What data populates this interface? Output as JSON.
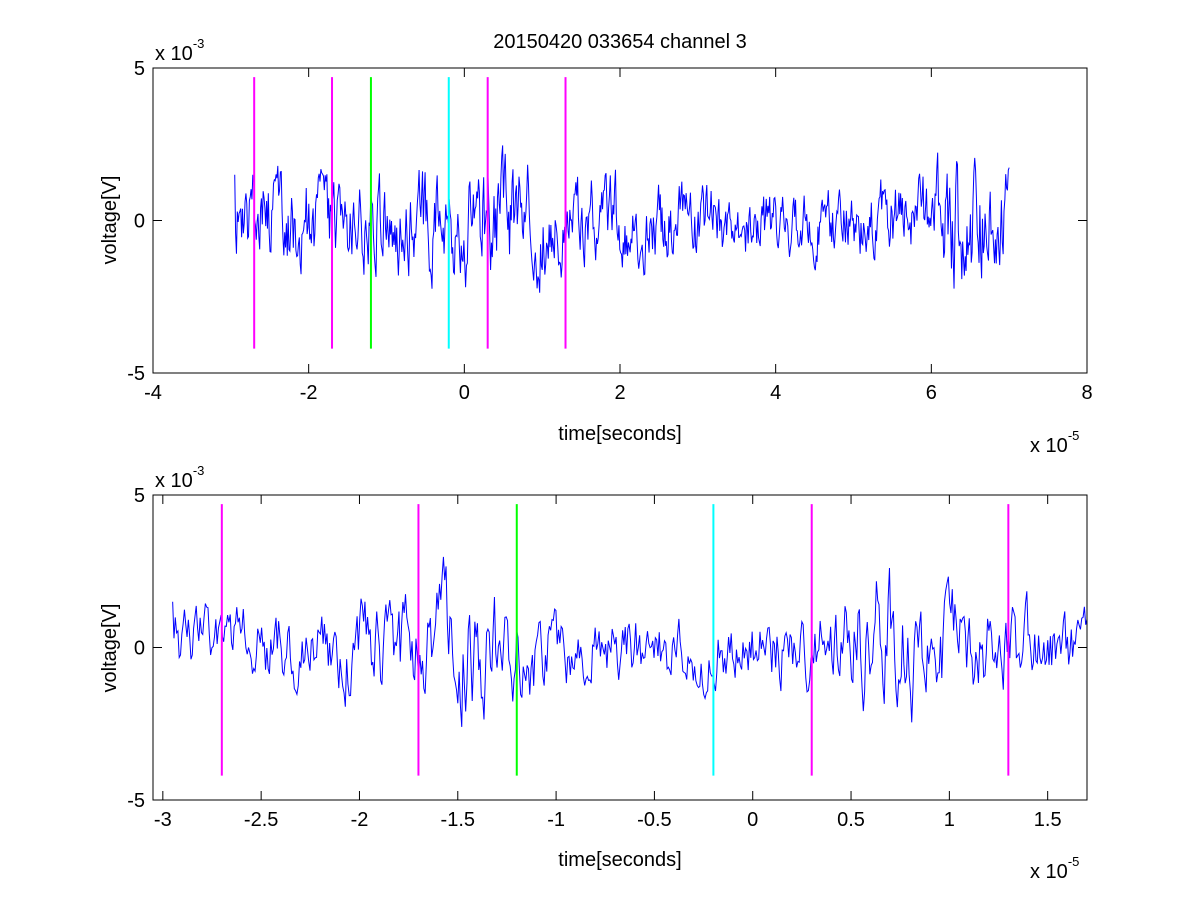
{
  "figure": {
    "title": "20150420 033654 channel 3"
  },
  "colors": {
    "trace": "#0000ff",
    "magenta": "#ff00ff",
    "green": "#00ff00",
    "cyan": "#00ffff",
    "axes": "#000000",
    "background": "#ffffff"
  },
  "chart_data": [
    {
      "type": "line",
      "title": "20150420 033654 channel 3",
      "xlabel": "time[seconds]",
      "ylabel": "voltage[V]",
      "x_scale_label": {
        "base": "x 10",
        "exponent": "-5"
      },
      "y_scale_label": {
        "base": "x 10",
        "exponent": "-3"
      },
      "xlim": [
        -4e-05,
        8e-05
      ],
      "ylim": [
        -0.005,
        0.005
      ],
      "xticks": [
        -4e-05,
        -2e-05,
        0,
        2e-05,
        4e-05,
        6e-05,
        8e-05
      ],
      "xtick_labels": [
        "-4",
        "-2",
        "0",
        "2",
        "4",
        "6",
        "8"
      ],
      "yticks": [
        -0.005,
        0,
        0.005
      ],
      "ytick_labels": [
        "-5",
        "0",
        "5"
      ],
      "grid": false,
      "trace": {
        "x_start": -2.95e-05,
        "x_end": 7e-05,
        "samples": 900,
        "amplitude_envelope": [
          [
            -2.95e-05,
            0.0011
          ],
          [
            -2e-05,
            0.0013
          ],
          [
            -1e-05,
            0.0012
          ],
          [
            5e-06,
            0.0016
          ],
          [
            1.3e-05,
            0.0011
          ],
          [
            3e-05,
            0.001
          ],
          [
            4.5e-05,
            0.0008
          ],
          [
            6e-05,
            0.0011
          ],
          [
            6.3e-05,
            0.0019
          ],
          [
            7e-05,
            0.0012
          ]
        ],
        "y_min": -0.0038,
        "y_max": 0.0042
      },
      "markers": [
        {
          "x": -2.7e-05,
          "color": "magenta",
          "y_range": [
            -0.0042,
            0.0047
          ]
        },
        {
          "x": -1.7e-05,
          "color": "magenta",
          "y_range": [
            -0.0042,
            0.0047
          ]
        },
        {
          "x": -1.2e-05,
          "color": "green",
          "y_range": [
            -0.0042,
            0.0047
          ]
        },
        {
          "x": -2e-06,
          "color": "cyan",
          "y_range": [
            -0.0042,
            0.0047
          ]
        },
        {
          "x": 3e-06,
          "color": "magenta",
          "y_range": [
            -0.0042,
            0.0047
          ]
        },
        {
          "x": 1.3e-05,
          "color": "magenta",
          "y_range": [
            -0.0042,
            0.0047
          ]
        }
      ]
    },
    {
      "type": "line",
      "title": "",
      "xlabel": "time[seconds]",
      "ylabel": "voltage[V]",
      "x_scale_label": {
        "base": "x 10",
        "exponent": "-5"
      },
      "y_scale_label": {
        "base": "x 10",
        "exponent": "-3"
      },
      "xlim": [
        -3.05e-05,
        1.7e-05
      ],
      "ylim": [
        -0.005,
        0.005
      ],
      "xticks": [
        -3e-05,
        -2.5e-05,
        -2e-05,
        -1.5e-05,
        -1e-05,
        -5e-06,
        0,
        5e-06,
        1e-05,
        1.5e-05
      ],
      "xtick_labels": [
        "-3",
        "-2.5",
        "-2",
        "-1.5",
        "-1",
        "-0.5",
        "0",
        "0.5",
        "1",
        "1.5"
      ],
      "yticks": [
        -0.005,
        0,
        0.005
      ],
      "ytick_labels": [
        "-5",
        "0",
        "5"
      ],
      "grid": false,
      "trace": {
        "x_start": -2.95e-05,
        "x_end": 1.7e-05,
        "samples": 700,
        "amplitude_envelope": [
          [
            -2.95e-05,
            0.0009
          ],
          [
            -2.2e-05,
            0.001
          ],
          [
            -1.45e-05,
            0.0017
          ],
          [
            -1e-05,
            0.001
          ],
          [
            -3e-06,
            0.0009
          ],
          [
            4e-06,
            0.0011
          ],
          [
            7e-06,
            0.0022
          ],
          [
            9e-06,
            0.0014
          ],
          [
            1.3e-05,
            0.0012
          ],
          [
            1.7e-05,
            0.0009
          ]
        ],
        "y_min": -0.0038,
        "y_max": 0.0038
      },
      "markers": [
        {
          "x": -2.7e-05,
          "color": "magenta",
          "y_range": [
            -0.0042,
            0.0047
          ]
        },
        {
          "x": -1.7e-05,
          "color": "magenta",
          "y_range": [
            -0.0042,
            0.0047
          ]
        },
        {
          "x": -1.2e-05,
          "color": "green",
          "y_range": [
            -0.0042,
            0.0047
          ]
        },
        {
          "x": -2e-06,
          "color": "cyan",
          "y_range": [
            -0.0042,
            0.0047
          ]
        },
        {
          "x": 3e-06,
          "color": "magenta",
          "y_range": [
            -0.0042,
            0.0047
          ]
        },
        {
          "x": 1.3e-05,
          "color": "magenta",
          "y_range": [
            -0.0042,
            0.0047
          ]
        }
      ]
    }
  ]
}
